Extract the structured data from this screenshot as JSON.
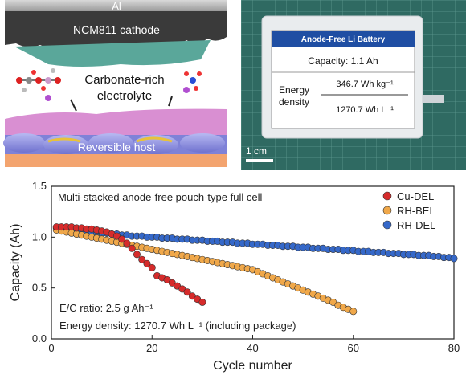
{
  "schematic": {
    "top_label": "Al",
    "cathode_label": "NCM811 cathode",
    "electrolyte_label_line1": "Carbonate-rich",
    "electrolyte_label_line2": "electrolyte",
    "host_label": "Reversible host",
    "colors": {
      "cathode": "#3a3a3a",
      "separator": "#5aa79a",
      "electrolyte": "#d98fd2",
      "host": "#8d8fe0",
      "substrate": "#f3a46f",
      "collector": "#b9b9b9"
    }
  },
  "photo": {
    "card_title": "Anode-Free Li Battery",
    "capacity_text": "Capacity:  1.1 Ah",
    "energy_label_line1": "Energy",
    "energy_label_line2": "density",
    "energy_value1": "346.7 Wh kg⁻¹",
    "energy_value2": "1270.7 Wh L⁻¹",
    "scale_label": "1 cm",
    "colors": {
      "mat": "#2f6a62",
      "card_header": "#1f4ea3"
    }
  },
  "chart_data": {
    "type": "scatter",
    "title": "Multi-stacked anode-free pouch-type full cell",
    "xlabel": "Cycle number",
    "ylabel": "Capacity (Ah)",
    "xlim": [
      0,
      80
    ],
    "ylim": [
      0.0,
      1.5
    ],
    "xticks": [
      "0",
      "20",
      "40",
      "60",
      "80"
    ],
    "yticks": [
      "0.0",
      "0.5",
      "1.0",
      "1.5"
    ],
    "legend_position": "top-right",
    "annotation1": "E/C ratio: 2.5 g Ah⁻¹",
    "annotation2": "Energy density: 1270.7 Wh L⁻¹ (including package)",
    "series": [
      {
        "name": "Cu-DEL",
        "color": "#d62b2b",
        "x": [
          1,
          2,
          3,
          4,
          5,
          6,
          7,
          8,
          9,
          10,
          11,
          12,
          13,
          14,
          15,
          16,
          17,
          18,
          19,
          20,
          21,
          22,
          23,
          24,
          25,
          26,
          27,
          28,
          29,
          30
        ],
        "y": [
          1.1,
          1.1,
          1.1,
          1.1,
          1.09,
          1.09,
          1.08,
          1.08,
          1.07,
          1.06,
          1.05,
          1.03,
          1.01,
          0.98,
          0.94,
          0.89,
          0.83,
          0.78,
          0.74,
          0.7,
          0.62,
          0.6,
          0.58,
          0.55,
          0.52,
          0.49,
          0.46,
          0.42,
          0.39,
          0.36
        ]
      },
      {
        "name": "RH-BEL",
        "color": "#f0a84a",
        "x": [
          1,
          2,
          3,
          4,
          5,
          6,
          7,
          8,
          9,
          10,
          11,
          12,
          13,
          14,
          15,
          16,
          17,
          18,
          19,
          20,
          21,
          22,
          23,
          24,
          25,
          26,
          27,
          28,
          29,
          30,
          31,
          32,
          33,
          34,
          35,
          36,
          37,
          38,
          39,
          40,
          41,
          42,
          43,
          44,
          45,
          46,
          47,
          48,
          49,
          50,
          51,
          52,
          53,
          54,
          55,
          56,
          57,
          58,
          59,
          60
        ],
        "y": [
          1.07,
          1.06,
          1.05,
          1.04,
          1.03,
          1.02,
          1.01,
          1.0,
          0.99,
          0.98,
          0.97,
          0.96,
          0.95,
          0.94,
          0.93,
          0.92,
          0.91,
          0.9,
          0.89,
          0.88,
          0.87,
          0.86,
          0.85,
          0.84,
          0.83,
          0.82,
          0.81,
          0.8,
          0.79,
          0.78,
          0.77,
          0.76,
          0.75,
          0.74,
          0.73,
          0.72,
          0.71,
          0.7,
          0.69,
          0.68,
          0.66,
          0.64,
          0.62,
          0.6,
          0.58,
          0.56,
          0.54,
          0.52,
          0.5,
          0.48,
          0.46,
          0.44,
          0.42,
          0.4,
          0.38,
          0.36,
          0.33,
          0.31,
          0.29,
          0.27
        ]
      },
      {
        "name": "RH-DEL",
        "color": "#3568c9",
        "x": [
          1,
          2,
          3,
          4,
          5,
          6,
          7,
          8,
          9,
          10,
          11,
          12,
          13,
          14,
          15,
          16,
          17,
          18,
          19,
          20,
          21,
          22,
          23,
          24,
          25,
          26,
          27,
          28,
          29,
          30,
          31,
          32,
          33,
          34,
          35,
          36,
          37,
          38,
          39,
          40,
          41,
          42,
          43,
          44,
          45,
          46,
          47,
          48,
          49,
          50,
          51,
          52,
          53,
          54,
          55,
          56,
          57,
          58,
          59,
          60,
          61,
          62,
          63,
          64,
          65,
          66,
          67,
          68,
          69,
          70,
          71,
          72,
          73,
          74,
          75,
          76,
          77,
          78,
          79,
          80
        ],
        "y": [
          1.09,
          1.08,
          1.08,
          1.07,
          1.07,
          1.06,
          1.06,
          1.05,
          1.05,
          1.04,
          1.04,
          1.03,
          1.03,
          1.02,
          1.02,
          1.01,
          1.01,
          1.01,
          1.0,
          1.0,
          1.0,
          0.99,
          0.99,
          0.99,
          0.98,
          0.98,
          0.98,
          0.97,
          0.97,
          0.97,
          0.96,
          0.96,
          0.96,
          0.95,
          0.95,
          0.95,
          0.94,
          0.94,
          0.94,
          0.93,
          0.93,
          0.93,
          0.92,
          0.92,
          0.92,
          0.91,
          0.91,
          0.91,
          0.9,
          0.9,
          0.9,
          0.89,
          0.89,
          0.89,
          0.88,
          0.88,
          0.88,
          0.87,
          0.87,
          0.87,
          0.86,
          0.86,
          0.86,
          0.85,
          0.85,
          0.85,
          0.84,
          0.84,
          0.84,
          0.83,
          0.83,
          0.83,
          0.82,
          0.82,
          0.82,
          0.81,
          0.81,
          0.8,
          0.8,
          0.79
        ]
      }
    ]
  }
}
